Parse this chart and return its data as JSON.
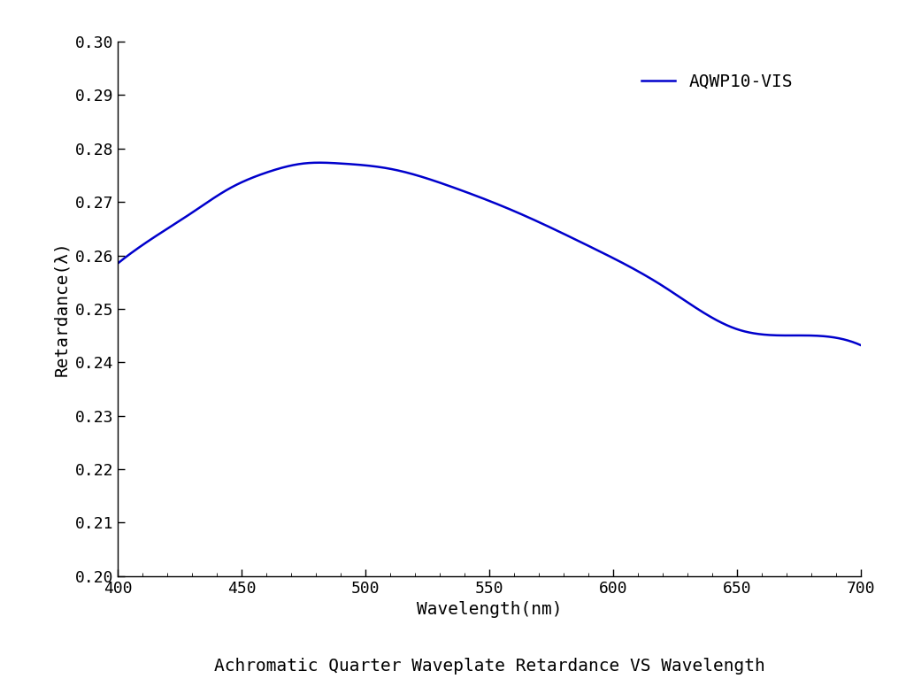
{
  "title": "Achromatic Quarter Waveplate Retardance VS Wavelength",
  "xlabel": "Wavelength(nm)",
  "ylabel": "Retardance(λ)",
  "xlim": [
    400,
    700
  ],
  "ylim": [
    0.2,
    0.3
  ],
  "xticks": [
    400,
    450,
    500,
    550,
    600,
    650,
    700
  ],
  "yticks": [
    0.2,
    0.21,
    0.22,
    0.23,
    0.24,
    0.25,
    0.26,
    0.27,
    0.28,
    0.29,
    0.3
  ],
  "line_color": "#0000CC",
  "line_width": 1.8,
  "legend_label": "AQWP10-VIS",
  "background_color": "#ffffff",
  "x_ctrl": [
    400,
    415,
    430,
    445,
    460,
    475,
    490,
    510,
    535,
    560,
    590,
    620,
    650,
    680,
    700
  ],
  "y_ctrl": [
    0.2585,
    0.2635,
    0.268,
    0.2725,
    0.2755,
    0.2772,
    0.2772,
    0.2762,
    0.2728,
    0.2683,
    0.2618,
    0.2543,
    0.2462,
    0.245,
    0.2432
  ],
  "title_fontsize": 14,
  "axis_fontsize": 14,
  "tick_fontsize": 13,
  "legend_fontsize": 14
}
